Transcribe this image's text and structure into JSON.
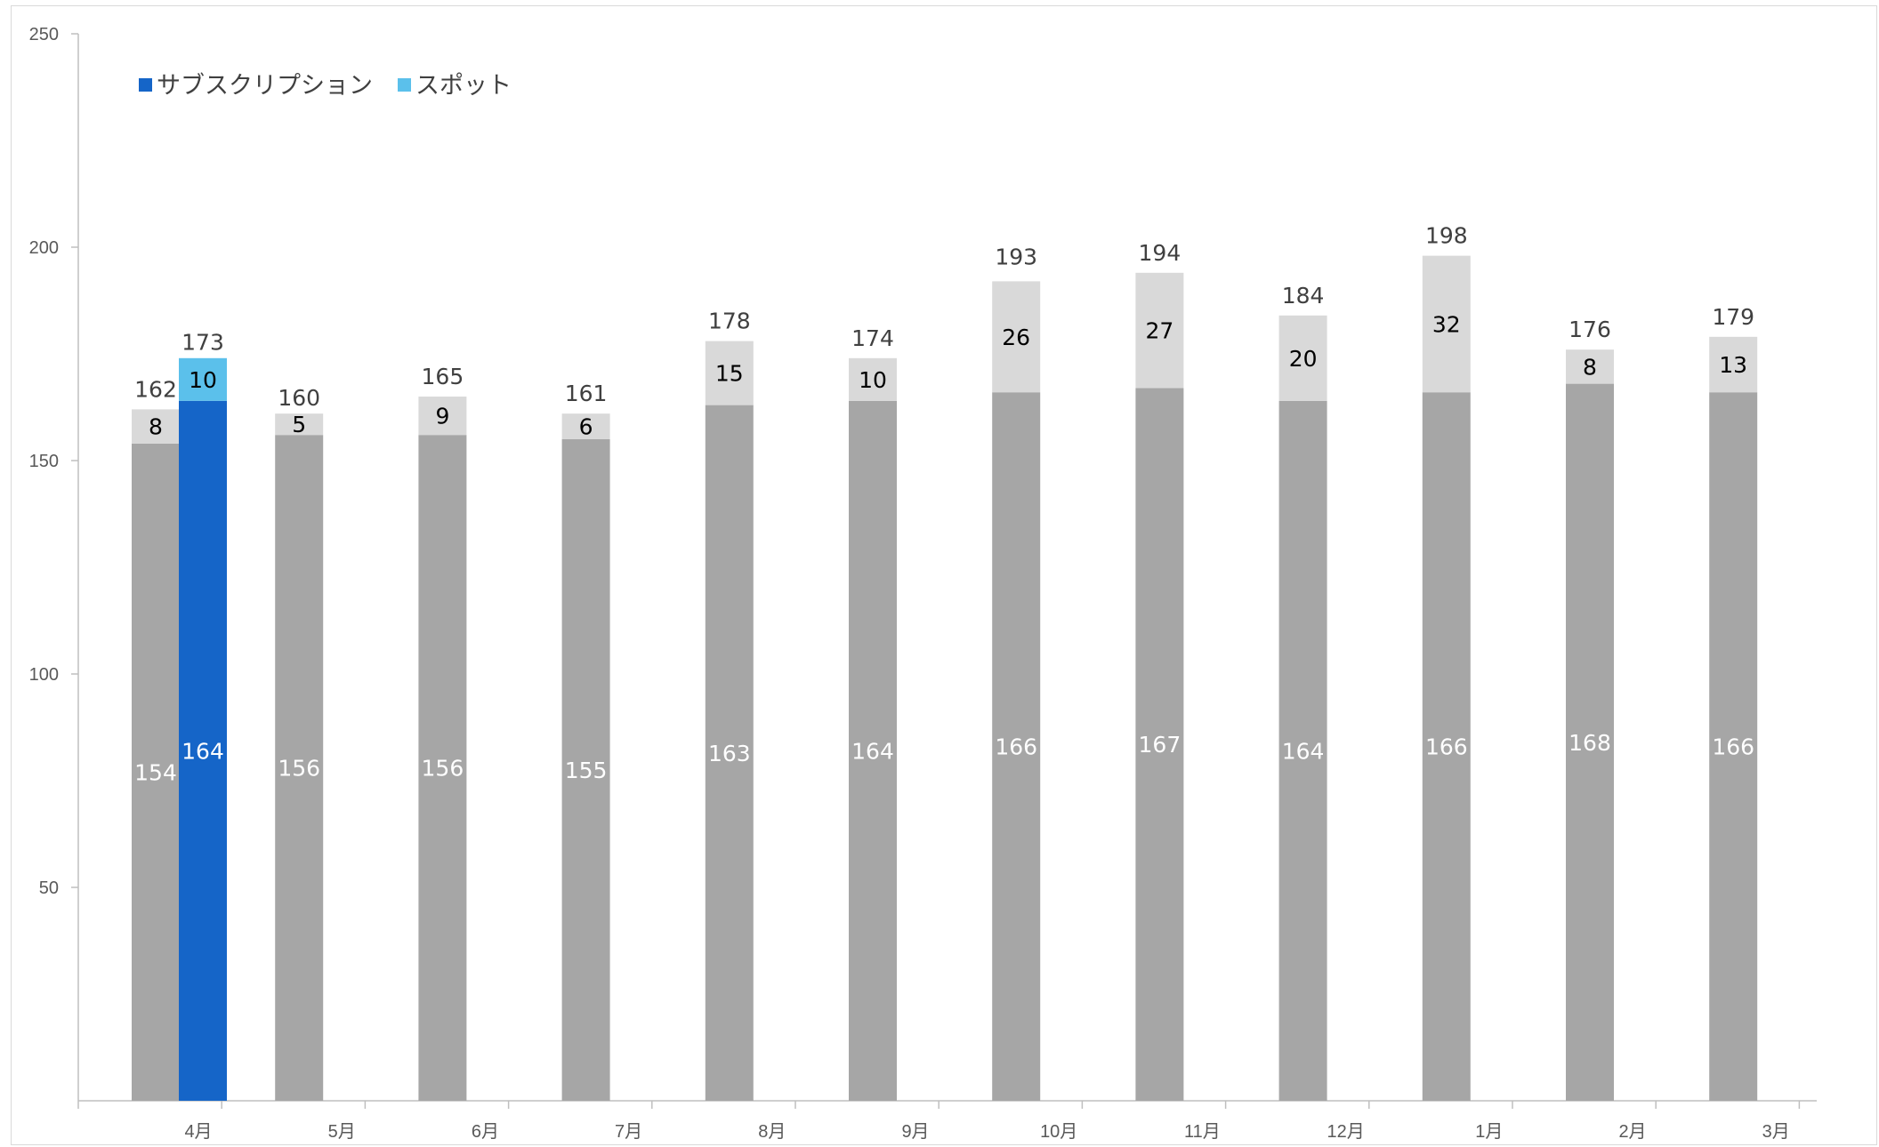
{
  "chart_data": {
    "type": "bar",
    "categories": [
      "4月",
      "5月",
      "6月",
      "7月",
      "8月",
      "9月",
      "10月",
      "11月",
      "12月",
      "1月",
      "2月",
      "3月"
    ],
    "ylim": [
      0,
      250
    ],
    "yticks": [
      50,
      100,
      150,
      200,
      250
    ],
    "legend": {
      "position": "top-left",
      "entries": [
        {
          "name": "サブスクリプション",
          "color": "#1565c8"
        },
        {
          "name": "スポット",
          "color": "#5bc0eb"
        }
      ]
    },
    "series": [
      {
        "group": "comparison",
        "stack": [
          {
            "values": [
              154,
              156,
              156,
              155,
              163,
              164,
              166,
              167,
              164,
              166,
              168,
              166
            ],
            "color": "#a6a6a6",
            "label_color": "#ffffff"
          },
          {
            "values": [
              8,
              5,
              9,
              6,
              15,
              10,
              26,
              27,
              20,
              32,
              8,
              13
            ],
            "color": "#d9d9d9",
            "label_color": "#000000"
          }
        ],
        "totals": [
          162,
          160,
          165,
          161,
          178,
          174,
          193,
          194,
          184,
          198,
          176,
          179
        ]
      },
      {
        "group": "current",
        "stack": [
          {
            "name": "サブスクリプション",
            "values": [
              164,
              null,
              null,
              null,
              null,
              null,
              null,
              null,
              null,
              null,
              null,
              null
            ],
            "color": "#1565c8",
            "label_color": "#ffffff"
          },
          {
            "name": "スポット",
            "values": [
              10,
              null,
              null,
              null,
              null,
              null,
              null,
              null,
              null,
              null,
              null,
              null
            ],
            "color": "#5bc0eb",
            "label_color": "#000000"
          }
        ],
        "totals": [
          173,
          null,
          null,
          null,
          null,
          null,
          null,
          null,
          null,
          null,
          null,
          null
        ]
      }
    ],
    "grid": false
  }
}
